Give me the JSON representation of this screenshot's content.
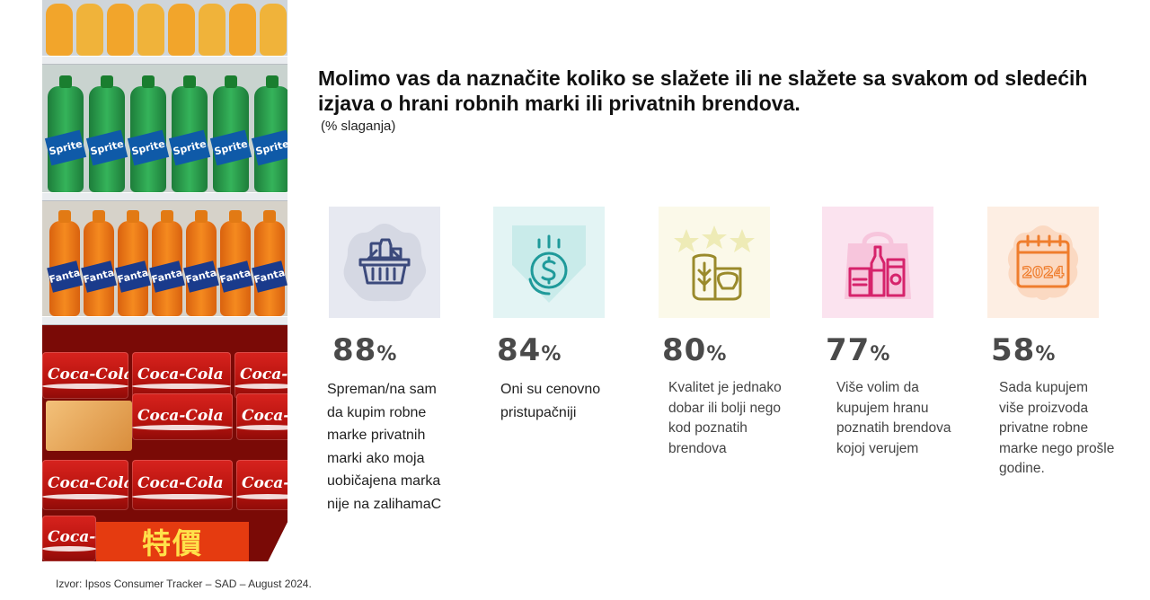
{
  "title": "Molimo vas da naznačite koliko se slažete ili ne slažete sa svakom od sledećih izjava o hrani robnih marki ili privatnih brendova.",
  "subtitle": "(% slaganja)",
  "photo": {
    "bottle_brands": [
      "Sprite",
      "Fanta"
    ],
    "can_brand": "Coca-Cola",
    "promo_text": "特價"
  },
  "stats": [
    {
      "value": "88",
      "unit": "%",
      "text": "Spreman/na sam da kupim robne marke privatnih marki ako moja uobičajena marka nije na zalihamaC",
      "icon": "shopping-basket-icon",
      "bg": "#e7e9f1",
      "accent": "#3c4a7c"
    },
    {
      "value": "84",
      "unit": "%",
      "text": "Oni su cenovno pristupačniji",
      "icon": "dollar-coin-icon",
      "bg": "#e3f4f4",
      "accent": "#1f9a9a"
    },
    {
      "value": "80",
      "unit": "%",
      "text": "Kvalitet je jednako dobar ili bolji nego kod poznatih brendova",
      "icon": "quality-bread-stars-icon",
      "bg": "#fbf9e9",
      "accent": "#9a8a2b"
    },
    {
      "value": "77",
      "unit": "%",
      "text": "Više volim da kupujem hranu poznatih brendova kojoj verujem",
      "icon": "grocery-bag-icon",
      "bg": "#fbe3ef",
      "accent": "#d6236b"
    },
    {
      "value": "58",
      "unit": "%",
      "text": "Sada kupujem više proizvoda privatne robne marke nego prošle godine.",
      "icon": "calendar-2024-icon",
      "bg": "#fdeee3",
      "accent": "#ef7d2d"
    }
  ],
  "calendar_year": "2024",
  "source": "Izvor: Ipsos Consumer Tracker – SAD – August 2024."
}
